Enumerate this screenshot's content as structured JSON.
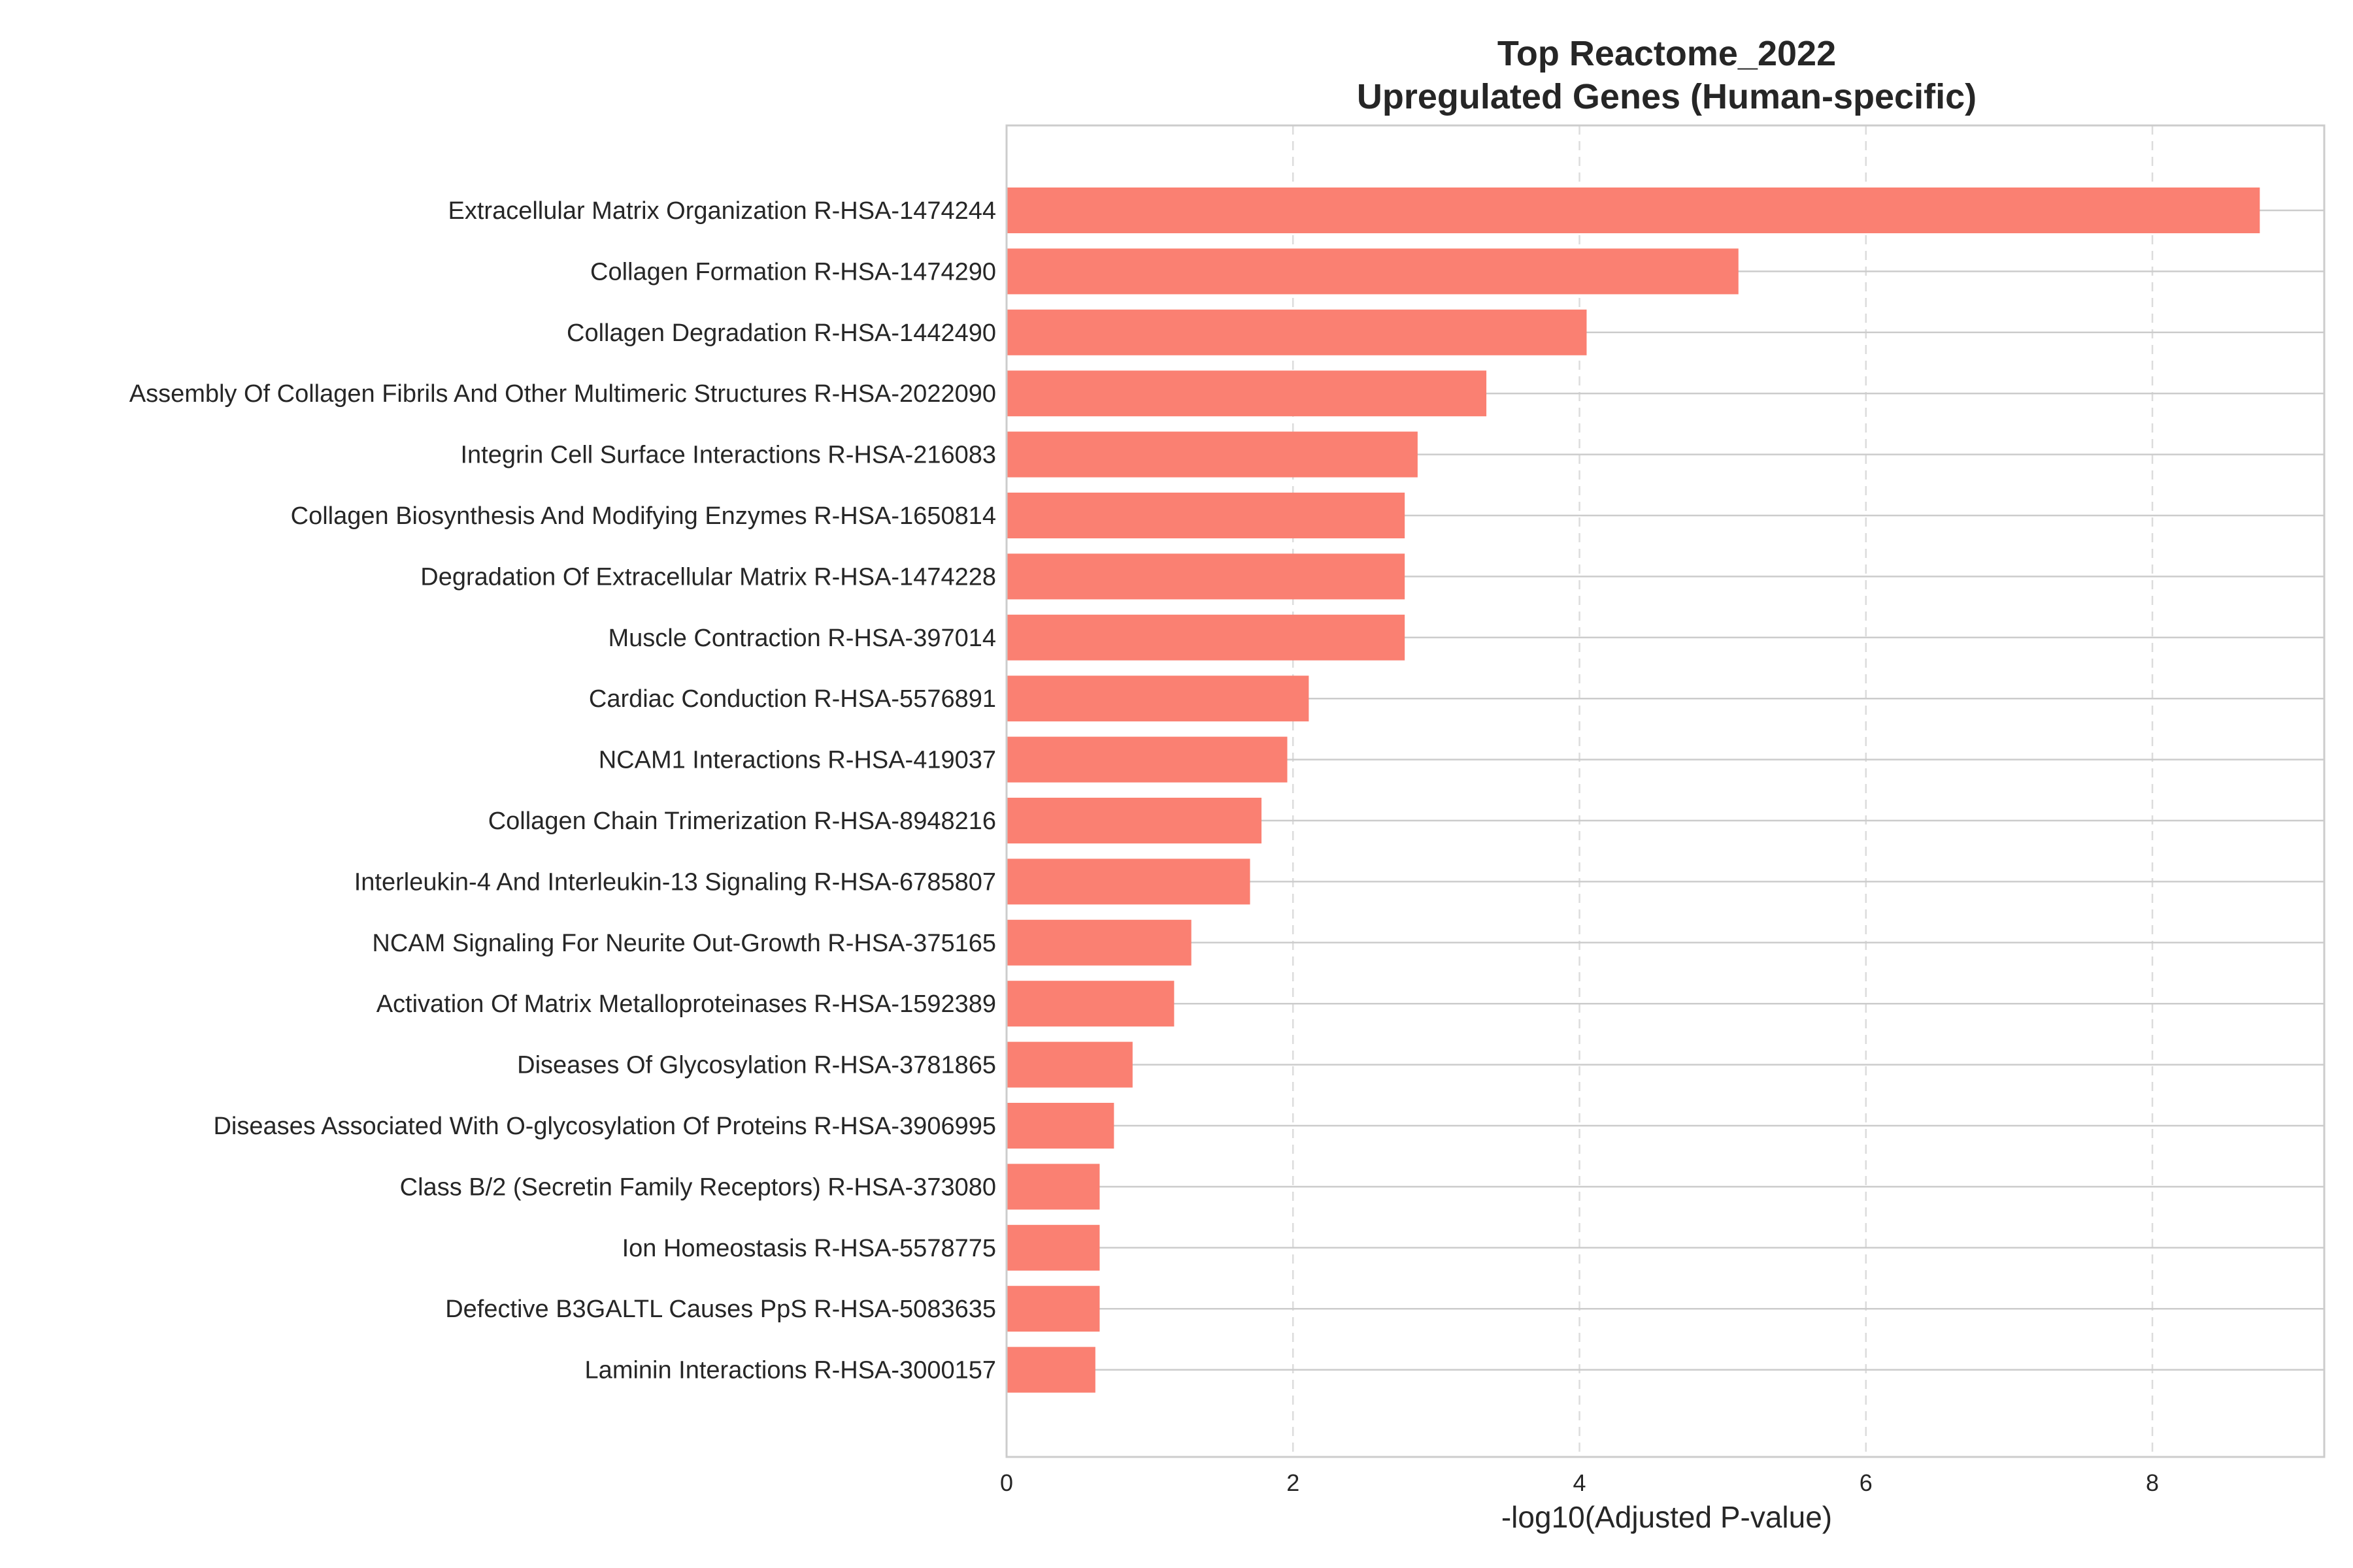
{
  "chart_data": {
    "type": "bar",
    "orientation": "horizontal",
    "title": [
      "Top Reactome_2022",
      "Upregulated Genes (Human-specific)"
    ],
    "xlabel": "-log10(Adjusted P-value)",
    "ylabel": "",
    "xlim": [
      0,
      9.2
    ],
    "xticks": [
      0,
      2,
      4,
      6,
      8
    ],
    "grid": {
      "x": "dashed",
      "y": "solid"
    },
    "bar_color": "#FA8072",
    "categories": [
      "Extracellular Matrix Organization R-HSA-1474244",
      "Collagen Formation R-HSA-1474290",
      "Collagen Degradation R-HSA-1442490",
      "Assembly Of Collagen Fibrils And Other Multimeric Structures R-HSA-2022090",
      "Integrin Cell Surface Interactions R-HSA-216083",
      "Collagen Biosynthesis And Modifying Enzymes R-HSA-1650814",
      "Degradation Of Extracellular Matrix R-HSA-1474228",
      "Muscle Contraction R-HSA-397014",
      "Cardiac Conduction R-HSA-5576891",
      "NCAM1 Interactions R-HSA-419037",
      "Collagen Chain Trimerization R-HSA-8948216",
      "Interleukin-4 And Interleukin-13 Signaling R-HSA-6785807",
      "NCAM Signaling For Neurite Out-Growth R-HSA-375165",
      "Activation Of Matrix Metalloproteinases R-HSA-1592389",
      "Diseases Of Glycosylation R-HSA-3781865",
      "Diseases Associated With O-glycosylation Of Proteins R-HSA-3906995",
      "Class B/2 (Secretin Family Receptors) R-HSA-373080",
      "Ion Homeostasis R-HSA-5578775",
      "Defective B3GALTL Causes PpS R-HSA-5083635",
      "Laminin Interactions R-HSA-3000157"
    ],
    "values": [
      8.75,
      5.11,
      4.05,
      3.35,
      2.87,
      2.78,
      2.78,
      2.78,
      2.11,
      1.96,
      1.78,
      1.7,
      1.29,
      1.17,
      0.88,
      0.75,
      0.65,
      0.65,
      0.65,
      0.62
    ]
  }
}
